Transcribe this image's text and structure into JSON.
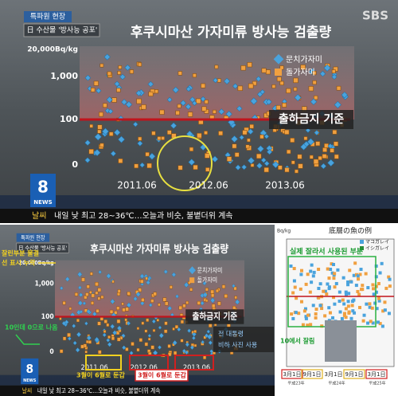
{
  "top": {
    "logo": "SBS",
    "tag": "특파원 현장",
    "headline": "日 수산물 '방사능 공포'",
    "title": "후쿠시마산 가자미류 방사능 검출량",
    "y_labels": [
      "20,000Bq/kg",
      "1,000",
      "100",
      "0"
    ],
    "legend": [
      "문치가자미",
      "돌가자미"
    ],
    "threshold_label": "출하금지 기준",
    "x_labels": [
      "2011.06",
      "2012.06",
      "2013.06"
    ],
    "channel": "8",
    "news_badge": "NEWS",
    "ticker_tag": "날씨",
    "ticker": "내일 낮 최고 28~36℃…오늘과 비슷, 불볕더위 계속"
  },
  "bottom": {
    "tag": "특파원 현장",
    "headline": "日 수산물 '방사능 공포'",
    "title": "후쿠시마산 가자미류 방사능 검출량",
    "y_labels": [
      "20,000Bq/kg",
      "1,000",
      "100",
      "0"
    ],
    "legend": [
      "문치가자미",
      "돌가자미"
    ],
    "threshold_label": "출하금지 기준",
    "x_labels": [
      "2011.06",
      "2012.06",
      "2013.06"
    ],
    "channel": "8",
    "news_badge": "NEWS",
    "ticker_tag": "날씨",
    "ticker": "내일 낮 최고 28~36℃…오늘과 비슷, 불볕더위 계속",
    "annotations": {
      "wave_missing": [
        "잘린부분 물결",
        "선 표시 누락"
      ],
      "zero_label": "10인데 0으로 나옴",
      "month_changed_1": "3월이 6월로 둔갑",
      "month_changed_2": "3월이 6월로 둔갑",
      "photo": [
        "전 대통령",
        "비하 사진 사용"
      ]
    }
  },
  "original": {
    "unit": "Bq/kg",
    "title": "底層の魚の例",
    "legend": [
      "マコガレイ",
      "イシガレイ"
    ],
    "crop_note": "실제 잘라서 사용된 부분",
    "cut_note": "10에서 잘림",
    "x_labels": [
      "3月1日",
      "9月1日",
      "3月1日",
      "9月1日",
      "3月1日"
    ],
    "years": [
      "平成23年",
      "平成24年",
      "平成25年"
    ]
  }
}
